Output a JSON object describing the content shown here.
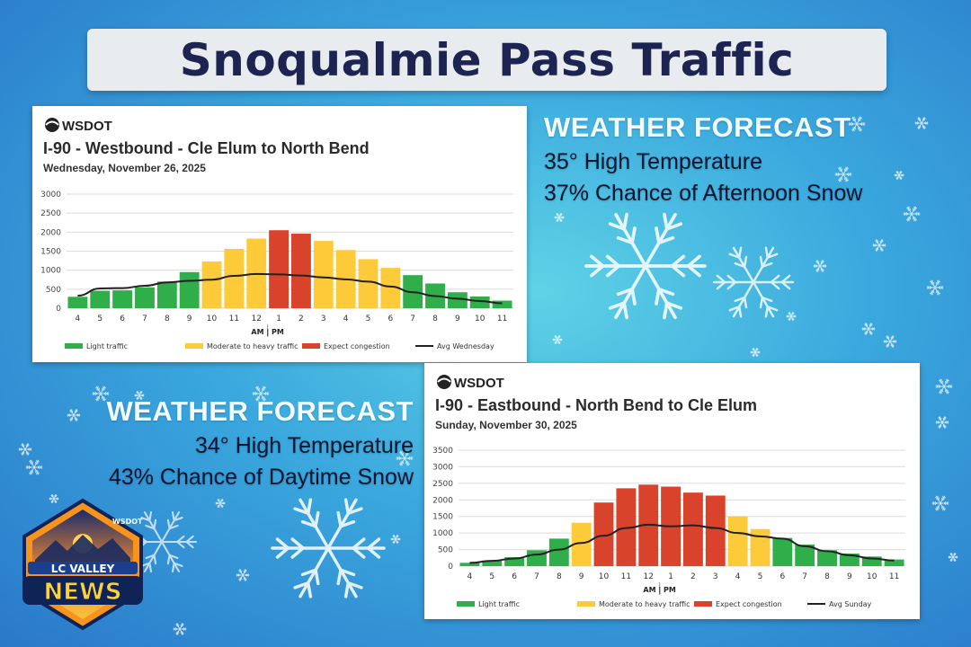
{
  "page": {
    "title": "Snoqualmie Pass Traffic"
  },
  "forecast_1": {
    "heading": "WEATHER FORECAST",
    "line1": "35°  High Temperature",
    "line2": "37% Chance of Afternoon Snow"
  },
  "forecast_2": {
    "heading": "WEATHER FORECAST",
    "line1": "34°  High Temperature",
    "line2": "43% Chance of Daytime Snow"
  },
  "logo": {
    "line1": "LC VALLEY",
    "line2": "NEWS",
    "badge": "WSDOT"
  },
  "colors": {
    "light": "#2fae4a",
    "moderate": "#fdcb3a",
    "congestion": "#d9432b",
    "avg": "#222222"
  },
  "chart_data": [
    {
      "type": "bar",
      "brand": "WSDOT",
      "title": "I-90 - Westbound - Cle Elum to North Bend",
      "subtitle": "Wednesday, November 26, 2025",
      "categories": [
        "4",
        "5",
        "6",
        "7",
        "8",
        "9",
        "10",
        "11",
        "12",
        "1",
        "2",
        "3",
        "4",
        "5",
        "6",
        "7",
        "8",
        "9",
        "10",
        "11"
      ],
      "values": [
        300,
        460,
        470,
        550,
        700,
        950,
        1230,
        1560,
        1830,
        2050,
        1960,
        1770,
        1530,
        1290,
        1060,
        870,
        650,
        420,
        310,
        200
      ],
      "levels": [
        "light",
        "light",
        "light",
        "light",
        "light",
        "light",
        "moderate",
        "moderate",
        "moderate",
        "congestion",
        "congestion",
        "moderate",
        "moderate",
        "moderate",
        "moderate",
        "light",
        "light",
        "light",
        "light",
        "light"
      ],
      "avg_values": [
        330,
        520,
        530,
        590,
        680,
        720,
        750,
        850,
        900,
        890,
        860,
        810,
        760,
        700,
        570,
        420,
        320,
        250,
        190,
        130
      ],
      "avg_name": "Avg Wednesday",
      "ylim": [
        0,
        3000
      ],
      "yticks": [
        0,
        500,
        1000,
        1500,
        2000,
        2500,
        3000
      ],
      "ampm_label": "AM | PM",
      "legend": [
        "Light traffic",
        "Moderate to heavy traffic",
        "Expect congestion",
        "Avg Wednesday"
      ]
    },
    {
      "type": "bar",
      "brand": "WSDOT",
      "title": "I-90 - Eastbound - North Bend to Cle Elum",
      "subtitle": "Sunday, November 30, 2025",
      "categories": [
        "4",
        "5",
        "6",
        "7",
        "8",
        "9",
        "10",
        "11",
        "12",
        "1",
        "2",
        "3",
        "4",
        "5",
        "6",
        "7",
        "8",
        "9",
        "10",
        "11"
      ],
      "values": [
        100,
        170,
        270,
        480,
        830,
        1310,
        1920,
        2350,
        2460,
        2400,
        2220,
        2130,
        1500,
        1120,
        850,
        650,
        480,
        380,
        290,
        200
      ],
      "levels": [
        "light",
        "light",
        "light",
        "light",
        "light",
        "moderate",
        "congestion",
        "congestion",
        "congestion",
        "congestion",
        "congestion",
        "congestion",
        "moderate",
        "moderate",
        "light",
        "light",
        "light",
        "light",
        "light",
        "light"
      ],
      "avg_values": [
        100,
        160,
        230,
        350,
        500,
        700,
        920,
        1150,
        1250,
        1200,
        1230,
        1150,
        1000,
        900,
        830,
        600,
        450,
        330,
        230,
        170
      ],
      "avg_name": "Avg Sunday",
      "ylim": [
        0,
        3500
      ],
      "yticks": [
        0,
        500,
        1000,
        1500,
        2000,
        2500,
        3000,
        3500
      ],
      "ampm_label": "AM | PM",
      "legend": [
        "Light traffic",
        "Moderate to heavy traffic",
        "Expect congestion",
        "Avg Sunday"
      ]
    }
  ]
}
